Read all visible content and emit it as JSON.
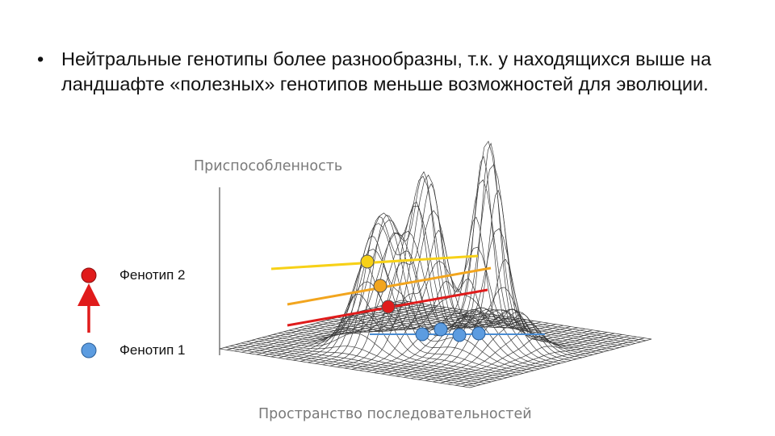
{
  "bullet": {
    "marker": "•",
    "text": "Нейтральные генотипы более разнообразны, т.к. у находящихся выше на ландшафте «полезных» генотипов меньше возможностей для эволюции."
  },
  "diagram": {
    "y_axis_label": "Приспособленность",
    "x_axis_label": "Пространство последовательностей",
    "colors": {
      "mesh": "#3a3a3a",
      "yellow": "#f7d117",
      "orange": "#f2a51e",
      "red": "#e01b1b",
      "blue": "#4a8cd2",
      "blue_dot": "#5c9ce0",
      "red_dot": "#e01b1b"
    }
  },
  "legend": {
    "top_label": "Фенотип 2",
    "bottom_label": "Фенотип 1"
  }
}
